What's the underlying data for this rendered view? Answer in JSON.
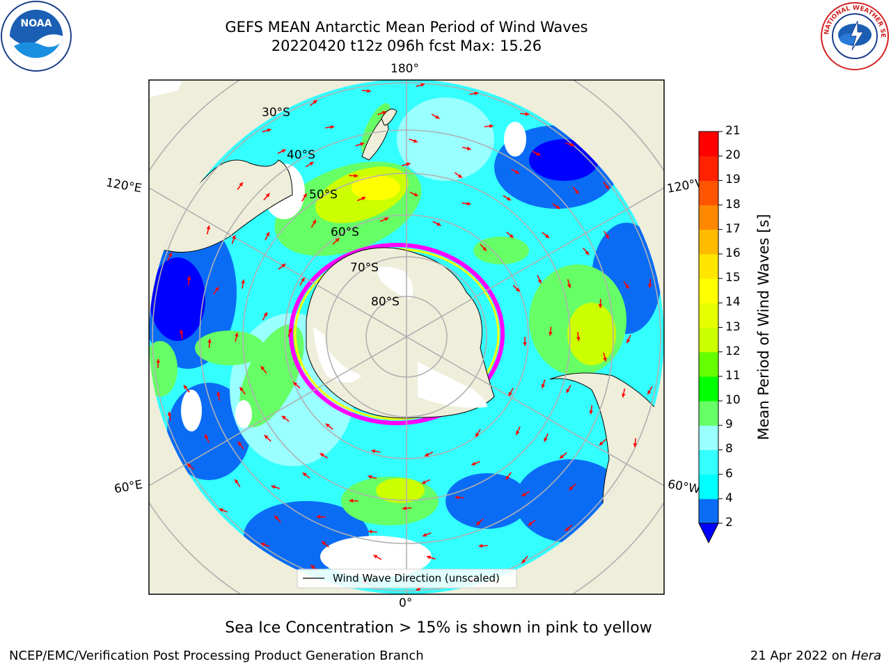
{
  "title": {
    "line1": "GEFS MEAN Antarctic Mean Period of Wind Waves",
    "line2": "20220420 t12z 096h fcst   Max: 15.26"
  },
  "logos": {
    "left": "noara-logo",
    "left_text": "NOAA",
    "right": "nws-logo",
    "right_text": "NATIONAL WEATHER SERVICE"
  },
  "map": {
    "projection": "south-polar-stereographic",
    "longitude_labels": {
      "top": "180°",
      "bottom": "0°",
      "upper_left": "120°E",
      "upper_right": "120°W",
      "lower_left": "60°E",
      "lower_right": "60°W"
    },
    "latitude_labels": [
      "30°S",
      "40°S",
      "50°S",
      "60°S",
      "70°S",
      "80°S"
    ],
    "legend": "Wind Wave Direction (unscaled)",
    "legend_line_color": "#000000",
    "arrow_color": "#ff0000",
    "land_color": "#efeedb",
    "ice_edge_colors": [
      "#ff00ff",
      "#ffff00"
    ]
  },
  "colorbar": {
    "label": "Mean Period of Wind Waves [s]",
    "ticks": [
      "2",
      "4",
      "6",
      "8",
      "9",
      "10",
      "11",
      "12",
      "13",
      "14",
      "15",
      "16",
      "17",
      "18",
      "19",
      "20",
      "21"
    ],
    "colors": [
      "#0a6cf5",
      "#00ffff",
      "#33ffff",
      "#99ffff",
      "#66ff66",
      "#00ff00",
      "#66ff00",
      "#ccff00",
      "#e6ff00",
      "#ffff00",
      "#ffe600",
      "#ffbb00",
      "#ff8800",
      "#ff5500",
      "#ff2200",
      "#ff0000"
    ],
    "under_color": "#0000ff"
  },
  "chart_data": {
    "type": "heatmap",
    "title": "GEFS MEAN Antarctic Mean Period of Wind Waves",
    "subtitle": "20220420 t12z 096h fcst   Max: 15.26",
    "colorbar_label": "Mean Period of Wind Waves [s]",
    "range": [
      2,
      21
    ],
    "max": 15.26
  },
  "notes": {
    "sea_ice": "Sea Ice Concentration > 15% is shown in pink to yellow"
  },
  "footer": {
    "left": "NCEP/EMC/Verification Post Processing Product Generation Branch",
    "right_date": "21 Apr 2022 on ",
    "right_machine": "Hera"
  }
}
